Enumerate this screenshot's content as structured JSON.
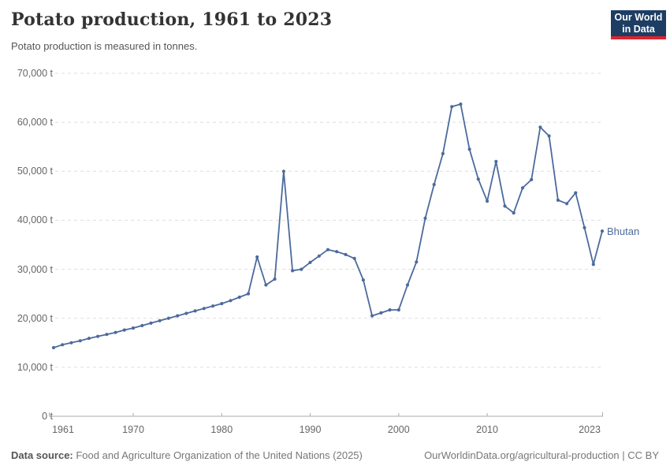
{
  "header": {
    "title": "Potato production, 1961 to 2023",
    "subtitle": "Potato production is measured in tonnes.",
    "logo_line1": "Our World",
    "logo_line2": "in Data"
  },
  "entity_label": "Bhutan",
  "footer": {
    "source_label": "Data source:",
    "source_text": " Food and Agriculture Organization of the United Nations (2025)",
    "link_text": "OurWorldinData.org/agricultural-production | CC BY"
  },
  "colors": {
    "line": "#4C6A9C",
    "grid": "#DDDDDD",
    "axis": "#ABABAB",
    "tick_text": "#666666",
    "logo_bg": "#1D3D63",
    "logo_red": "#E0232E"
  },
  "chart_data": {
    "type": "line",
    "title": "Potato production, 1961 to 2023",
    "ylabel": "",
    "xlabel": "",
    "unit": "tonnes",
    "grid": true,
    "legend_position": "end-of-line",
    "xlim": [
      1961,
      2023
    ],
    "ylim": [
      0,
      70000
    ],
    "x": [
      1961,
      1962,
      1963,
      1964,
      1965,
      1966,
      1967,
      1968,
      1969,
      1970,
      1971,
      1972,
      1973,
      1974,
      1975,
      1976,
      1977,
      1978,
      1979,
      1980,
      1981,
      1982,
      1983,
      1984,
      1985,
      1986,
      1987,
      1988,
      1989,
      1990,
      1991,
      1992,
      1993,
      1994,
      1995,
      1996,
      1997,
      1998,
      1999,
      2000,
      2001,
      2002,
      2003,
      2004,
      2005,
      2006,
      2007,
      2008,
      2009,
      2010,
      2011,
      2012,
      2013,
      2014,
      2015,
      2016,
      2017,
      2018,
      2019,
      2020,
      2021,
      2022,
      2023
    ],
    "series": [
      {
        "name": "Bhutan",
        "values": [
          14000,
          14600,
          15000,
          15400,
          15900,
          16300,
          16700,
          17100,
          17600,
          18000,
          18500,
          19000,
          19500,
          20000,
          20500,
          21000,
          21500,
          22000,
          22500,
          23000,
          23600,
          24300,
          25000,
          32500,
          26800,
          28000,
          50000,
          29700,
          30000,
          31400,
          32700,
          34000,
          33600,
          33000,
          32200,
          27800,
          20500,
          21100,
          21700,
          21700,
          26800,
          31500,
          40400,
          47300,
          53600,
          63200,
          63700,
          54500,
          48400,
          43900,
          52000,
          42900,
          41500,
          46600,
          48300,
          59000,
          57200,
          44100,
          43400,
          45600,
          38500,
          31000,
          37800
        ]
      }
    ],
    "y_ticks": [
      {
        "value": 0,
        "label": "0 t"
      },
      {
        "value": 10000,
        "label": "10,000 t"
      },
      {
        "value": 20000,
        "label": "20,000 t"
      },
      {
        "value": 30000,
        "label": "30,000 t"
      },
      {
        "value": 40000,
        "label": "40,000 t"
      },
      {
        "value": 50000,
        "label": "50,000 t"
      },
      {
        "value": 60000,
        "label": "60,000 t"
      },
      {
        "value": 70000,
        "label": "70,000 t"
      }
    ],
    "x_ticks": [
      {
        "value": 1961,
        "label": "1961"
      },
      {
        "value": 1970,
        "label": "1970"
      },
      {
        "value": 1980,
        "label": "1980"
      },
      {
        "value": 1990,
        "label": "1990"
      },
      {
        "value": 2000,
        "label": "2000"
      },
      {
        "value": 2010,
        "label": "2010"
      },
      {
        "value": 2023,
        "label": "2023"
      }
    ]
  }
}
